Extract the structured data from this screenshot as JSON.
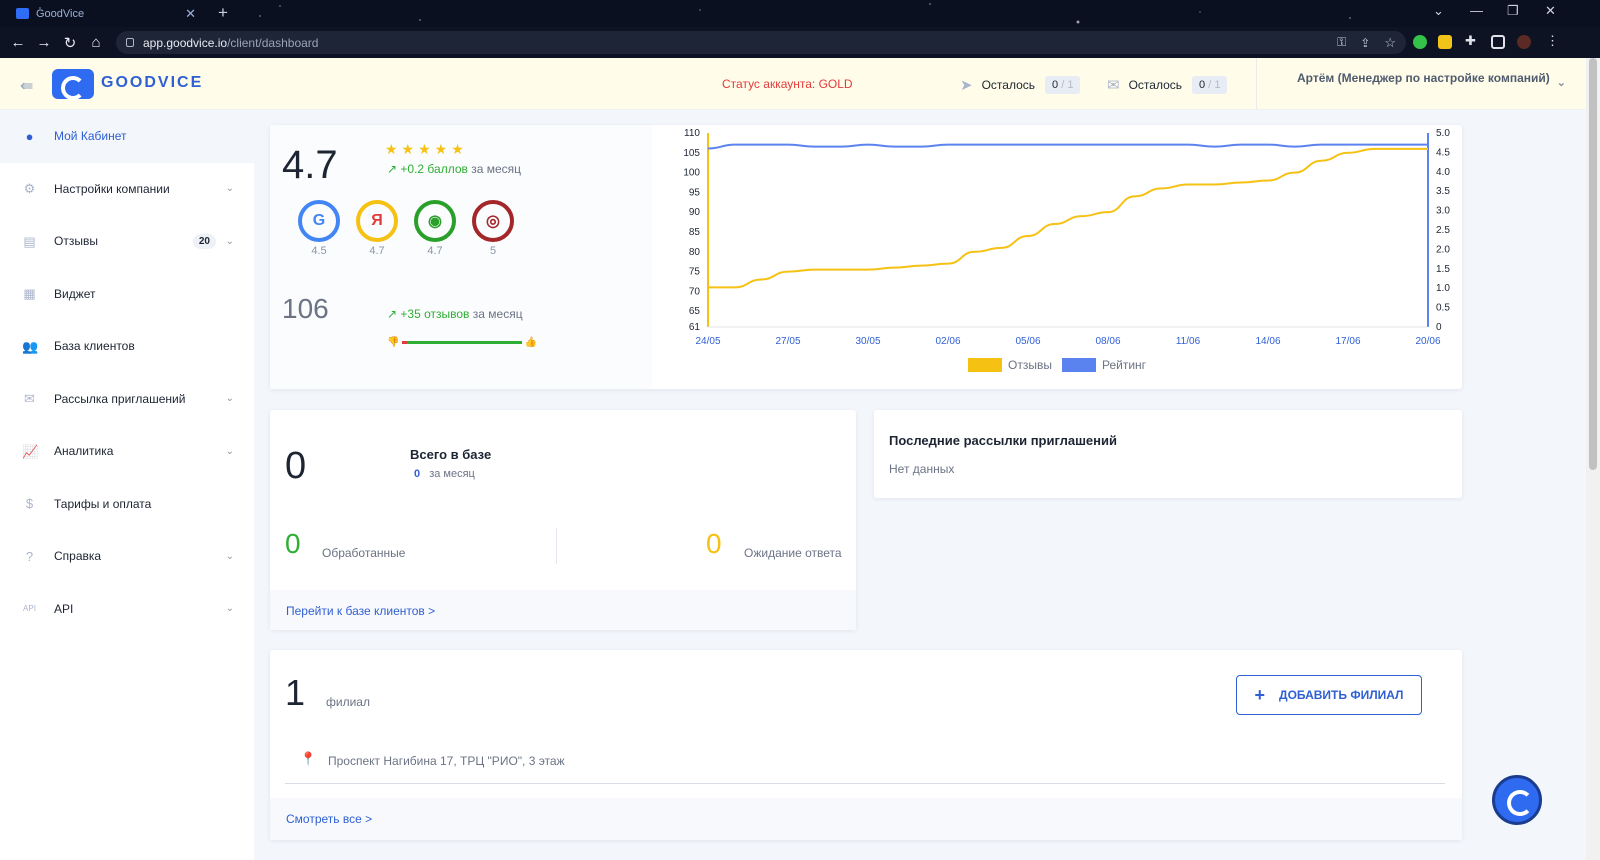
{
  "browser": {
    "tab_title": "GoodVice",
    "url_host": "app.goodvice.io",
    "url_path": "/client/dashboard"
  },
  "header": {
    "brand": "GOODVICE",
    "status_label": "Статус аккаунта: GOLD",
    "quota_sms_label": "Осталось",
    "quota_sms_used": "0",
    "quota_sms_total": "/ 1",
    "quota_email_label": "Осталось",
    "quota_email_used": "0",
    "quota_email_total": "/ 1",
    "user_name": "Артём (Менеджер по настройке компаний)"
  },
  "sidebar": {
    "items": [
      {
        "label": "Мой Кабинет",
        "icon": "user-circle-icon"
      },
      {
        "label": "Настройки компании",
        "icon": "gear-icon"
      },
      {
        "label": "Отзывы",
        "icon": "chat-icon",
        "badge": "20"
      },
      {
        "label": "Виджет",
        "icon": "widget-icon"
      },
      {
        "label": "База клиентов",
        "icon": "users-icon"
      },
      {
        "label": "Рассылка приглашений",
        "icon": "mail-icon"
      },
      {
        "label": "Аналитика",
        "icon": "chart-icon"
      },
      {
        "label": "Тарифы и оплата",
        "icon": "coin-icon"
      },
      {
        "label": "Справка",
        "icon": "question-icon"
      },
      {
        "label": "API",
        "icon": "api-icon"
      }
    ]
  },
  "rating": {
    "value": "4.7",
    "delta": "+0.2 баллов",
    "delta_suffix": "за месяц",
    "sources": [
      {
        "name": "Google",
        "value": "4.5",
        "color": "#4285f4"
      },
      {
        "name": "Яндекс",
        "value": "4.7",
        "color": "#f5c113"
      },
      {
        "name": "2GIS",
        "value": "4.7",
        "color": "#2aa02a"
      },
      {
        "name": "Target",
        "value": "5",
        "color": "#a3262a"
      }
    ],
    "reviews_total": "106",
    "reviews_delta": "+35 отзывов",
    "reviews_delta_suffix": "за месяц",
    "neg_share": 0.04,
    "pos_share": 0.96
  },
  "chart_data": {
    "type": "line",
    "x": [
      "24/05",
      "25/05",
      "26/05",
      "27/05",
      "28/05",
      "29/05",
      "30/05",
      "31/05",
      "01/06",
      "02/06",
      "03/06",
      "04/06",
      "05/06",
      "06/06",
      "07/06",
      "08/06",
      "09/06",
      "10/06",
      "11/06",
      "12/06",
      "13/06",
      "14/06",
      "15/06",
      "16/06",
      "17/06",
      "18/06",
      "19/06",
      "20/06"
    ],
    "x_ticks": [
      "24/05",
      "27/05",
      "30/05",
      "02/06",
      "05/06",
      "08/06",
      "11/06",
      "14/06",
      "17/06",
      "20/06"
    ],
    "series": [
      {
        "name": "Отзывы",
        "axis": "left",
        "color": "#f5c113",
        "values": [
          71,
          71,
          73,
          75,
          75.5,
          75.5,
          75.5,
          76,
          76.5,
          77,
          80,
          81,
          84,
          87,
          89,
          90,
          94,
          96,
          97,
          97,
          97.5,
          98,
          100,
          103,
          105,
          106,
          106,
          106
        ]
      },
      {
        "name": "Рейтинг",
        "axis": "right",
        "color": "#5b83f0",
        "values": [
          4.6,
          4.7,
          4.7,
          4.7,
          4.65,
          4.65,
          4.7,
          4.65,
          4.65,
          4.7,
          4.7,
          4.7,
          4.7,
          4.7,
          4.7,
          4.7,
          4.7,
          4.7,
          4.7,
          4.65,
          4.7,
          4.7,
          4.65,
          4.7,
          4.7,
          4.7,
          4.7,
          4.7
        ]
      }
    ],
    "y_left_ticks": [
      "110",
      "105",
      "100",
      "95",
      "90",
      "85",
      "80",
      "75",
      "70",
      "65",
      "61"
    ],
    "y_right_ticks": [
      "5.0",
      "4.5",
      "4.0",
      "3.5",
      "3.0",
      "2.5",
      "2.0",
      "1.5",
      "1.0",
      "0.5",
      "0"
    ],
    "ylim_left": [
      61,
      110
    ],
    "ylim_right": [
      0,
      5
    ],
    "legend_placement": "bottom"
  },
  "clients": {
    "total": "0",
    "total_label": "Всего в базе",
    "month_value": "0",
    "month_label": "за месяц",
    "processed_value": "0",
    "processed_label": "Обработанные",
    "waiting_value": "0",
    "waiting_label": "Ожидание ответа",
    "link": "Перейти к базе клиентов >"
  },
  "mailings": {
    "title": "Последние рассылки приглашений",
    "empty": "Нет данных"
  },
  "branches": {
    "count": "1",
    "count_label": "филиал",
    "add_button": "ДОБАВИТЬ ФИЛИАЛ",
    "address": "Проспект Нагибина 17, ТРЦ \"РИО\", 3 этаж",
    "view_all": "Смотреть все >"
  }
}
